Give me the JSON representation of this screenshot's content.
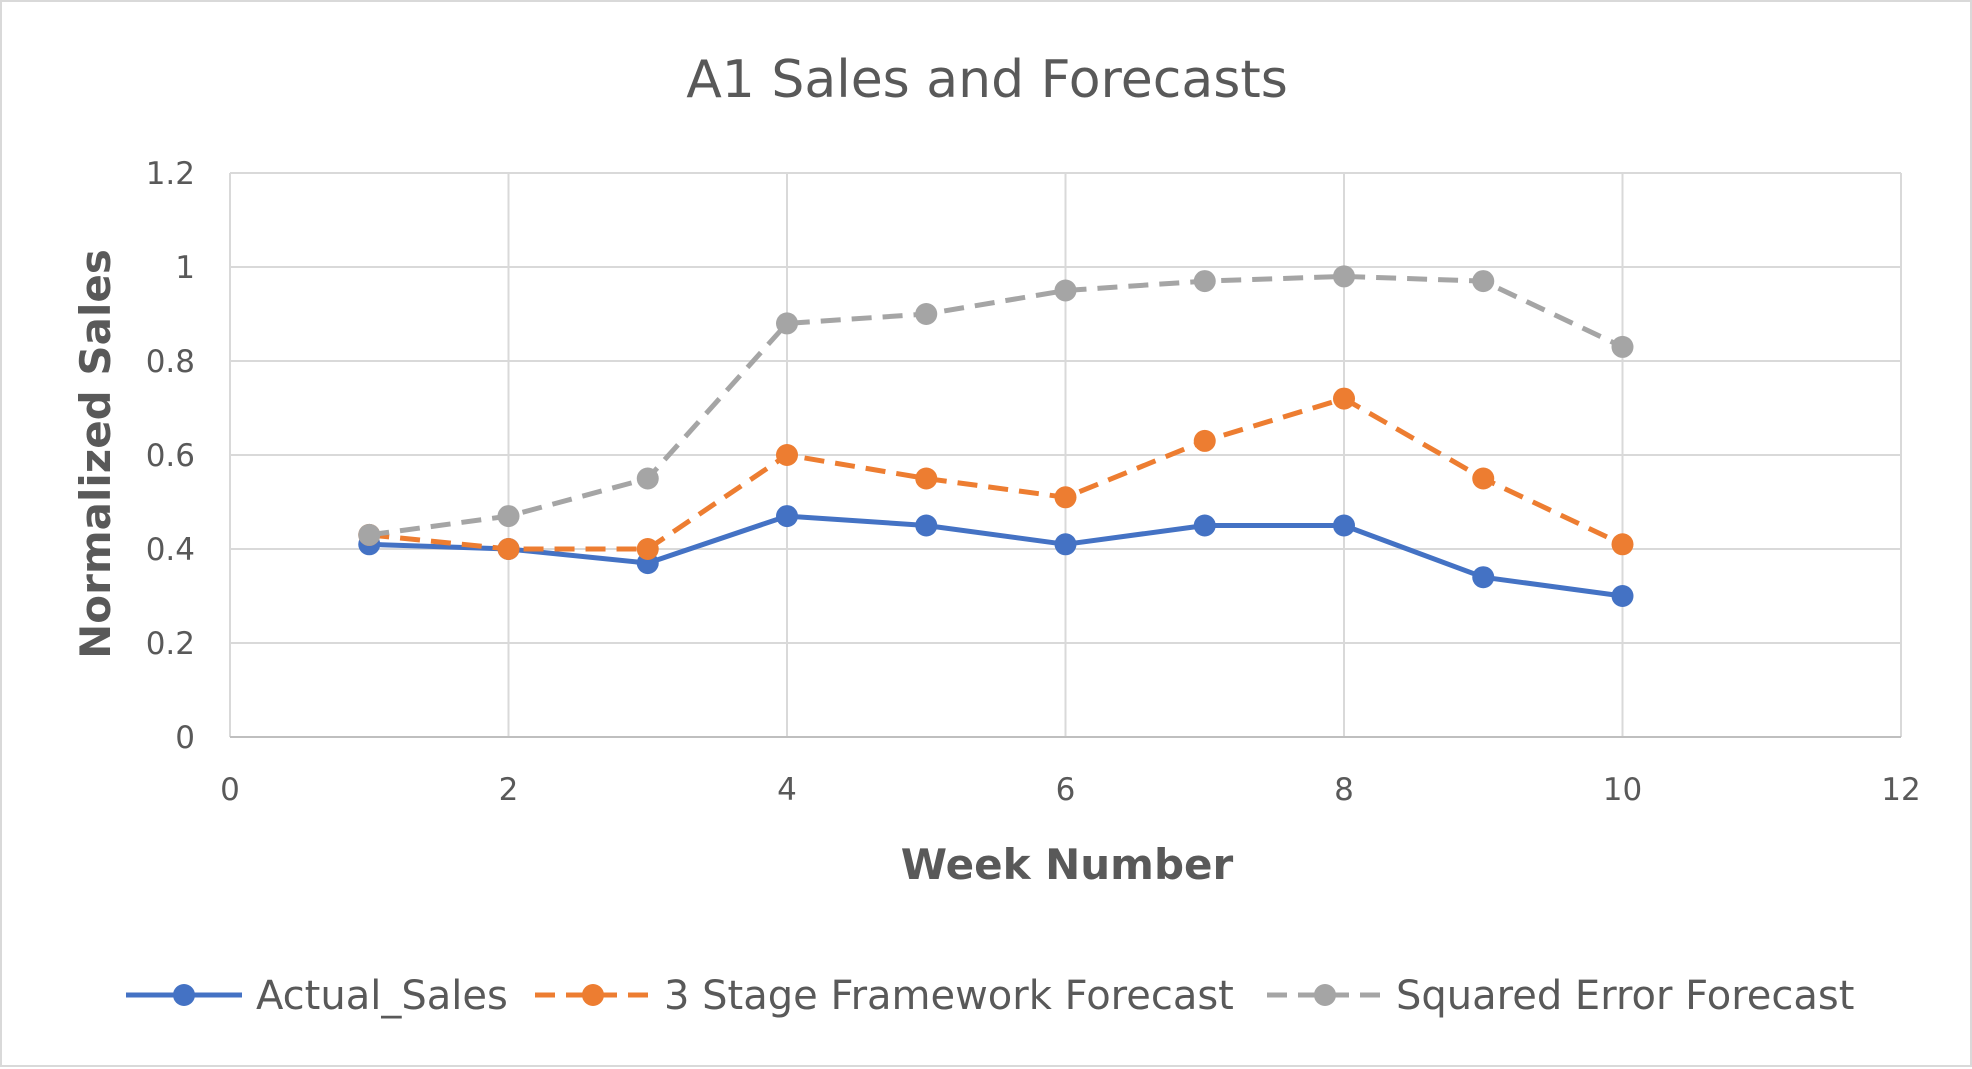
{
  "chart_data": {
    "type": "line",
    "title": "A1 Sales and Forecasts",
    "xlabel": "Week Number",
    "ylabel": "Normalized Sales",
    "xlim": [
      0,
      12
    ],
    "ylim": [
      0,
      1.2
    ],
    "xticks": [
      0,
      2,
      4,
      6,
      8,
      10,
      12
    ],
    "yticks": [
      0,
      0.2,
      0.4,
      0.6,
      0.8,
      1,
      1.2
    ],
    "xtick_labels": [
      "0",
      "2",
      "4",
      "6",
      "8",
      "10",
      "12"
    ],
    "ytick_labels": [
      "0",
      "0.2",
      "0.4",
      "0.6",
      "0.8",
      "1",
      "1.2"
    ],
    "grid": true,
    "legend_position": "bottom",
    "x": [
      1,
      2,
      3,
      4,
      5,
      6,
      7,
      8,
      9,
      10
    ],
    "series": [
      {
        "name": "Actual_Sales",
        "color": "#4472c4",
        "dash": "solid",
        "values": [
          0.41,
          0.4,
          0.37,
          0.47,
          0.45,
          0.41,
          0.45,
          0.45,
          0.34,
          0.3
        ]
      },
      {
        "name": "3 Stage Framework Forecast",
        "color": "#ed7d31",
        "dash": "dashed",
        "values": [
          0.43,
          0.4,
          0.4,
          0.6,
          0.55,
          0.51,
          0.63,
          0.72,
          0.55,
          0.41
        ]
      },
      {
        "name": "Squared Error Forecast",
        "color": "#a5a5a5",
        "dash": "dashed",
        "values": [
          0.43,
          0.47,
          0.55,
          0.88,
          0.9,
          0.95,
          0.97,
          0.98,
          0.97,
          0.83
        ]
      }
    ]
  }
}
